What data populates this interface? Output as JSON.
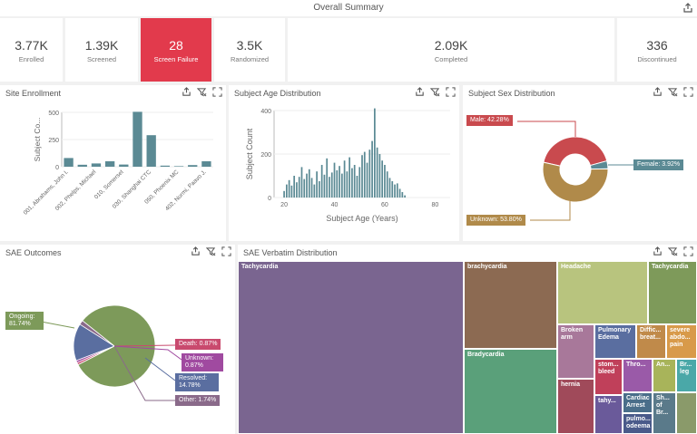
{
  "header": {
    "title": "Overall Summary"
  },
  "kpis": [
    {
      "value": "3.77K",
      "label": "Enrolled"
    },
    {
      "value": "1.39K",
      "label": "Screened"
    },
    {
      "value": "28",
      "label": "Screen Failure"
    },
    {
      "value": "3.5K",
      "label": "Randomized"
    },
    {
      "value": "2.09K",
      "label": "Completed"
    },
    {
      "value": "336",
      "label": "Discontinued"
    }
  ],
  "panels": {
    "site_enrollment": "Site Enrollment",
    "age_distribution": "Subject Age Distribution",
    "sex_distribution": "Subject Sex Distribution",
    "sae_outcomes": "SAE Outcomes",
    "sae_verbatim": "SAE Verbatim Distribution"
  },
  "colors": {
    "alert": "#e23a4c",
    "bar": "#5b8a94",
    "male": "#c94a4e",
    "female": "#5b8a94",
    "unknown": "#b08a4a"
  },
  "chart_data": [
    {
      "id": "site_enrollment",
      "type": "bar",
      "title": "Site Enrollment",
      "ylabel": "Subject Co...",
      "ylim": [
        0,
        500
      ],
      "yticks": [
        "0",
        "250",
        "500"
      ],
      "categories": [
        "001, Abrahams, John I.",
        "",
        "002, Phelps, Michael",
        "",
        "010, Somerset",
        "",
        "030, Shanghai CTC",
        "",
        "050, Phoenix MC",
        "",
        "402, Nurmi, Paavo J."
      ],
      "values": [
        80,
        18,
        30,
        50,
        20,
        505,
        290,
        10,
        5,
        15,
        50
      ]
    },
    {
      "id": "age_distribution",
      "type": "bar",
      "title": "Subject Age Distribution",
      "xlabel": "Subject Age (Years)",
      "ylabel": "Subject Count",
      "ylim": [
        0,
        400
      ],
      "yticks": [
        "0",
        "200",
        "400"
      ],
      "xlim": [
        16,
        86
      ],
      "xticks": [
        "20",
        "40",
        "60",
        "80"
      ],
      "x": [
        20,
        21,
        22,
        23,
        24,
        25,
        26,
        27,
        28,
        29,
        30,
        31,
        32,
        33,
        34,
        35,
        36,
        37,
        38,
        39,
        40,
        41,
        42,
        43,
        44,
        45,
        46,
        47,
        48,
        49,
        50,
        51,
        52,
        53,
        54,
        55,
        56,
        57,
        58,
        59,
        60,
        61,
        62,
        63,
        64,
        65,
        66,
        67,
        68
      ],
      "values": [
        30,
        60,
        80,
        55,
        100,
        70,
        95,
        140,
        85,
        110,
        130,
        90,
        60,
        120,
        75,
        150,
        105,
        180,
        95,
        115,
        160,
        125,
        145,
        110,
        170,
        120,
        185,
        135,
        150,
        100,
        140,
        195,
        210,
        160,
        220,
        260,
        410,
        230,
        200,
        170,
        150,
        120,
        90,
        75,
        60,
        65,
        40,
        25,
        10
      ]
    },
    {
      "id": "sex_distribution",
      "type": "pie",
      "title": "Subject Sex Distribution",
      "labels": [
        "Male: 42.28%",
        "Female: 3.92%",
        "Unknown: 53.80%"
      ],
      "values": [
        42.28,
        3.92,
        53.8
      ]
    },
    {
      "id": "sae_outcomes",
      "type": "pie",
      "title": "SAE Outcomes",
      "labels": [
        "Ongoing: 81.74%",
        "Death: 0.87%",
        "Unknown: 0.87%",
        "Resolved: 14.78%",
        "Other: 1.74%"
      ],
      "values": [
        81.74,
        0.87,
        0.87,
        14.78,
        1.74
      ]
    },
    {
      "id": "sae_verbatim",
      "type": "treemap",
      "title": "SAE Verbatim Distribution",
      "labels": [
        "Tachycardia",
        "brachycardia",
        "Bradycardia",
        "Headache",
        "Tachycardia",
        "Broken arm",
        "Pulmonary Edema",
        "Diffic... breat...",
        "severe abdo... pain",
        "stom... bleed",
        "Thro...",
        "An...",
        "Br... leg",
        "hernia",
        "tahy...",
        "Cardiac Arrest",
        "Sh... of Br...",
        "pulmo... odeema"
      ]
    }
  ]
}
